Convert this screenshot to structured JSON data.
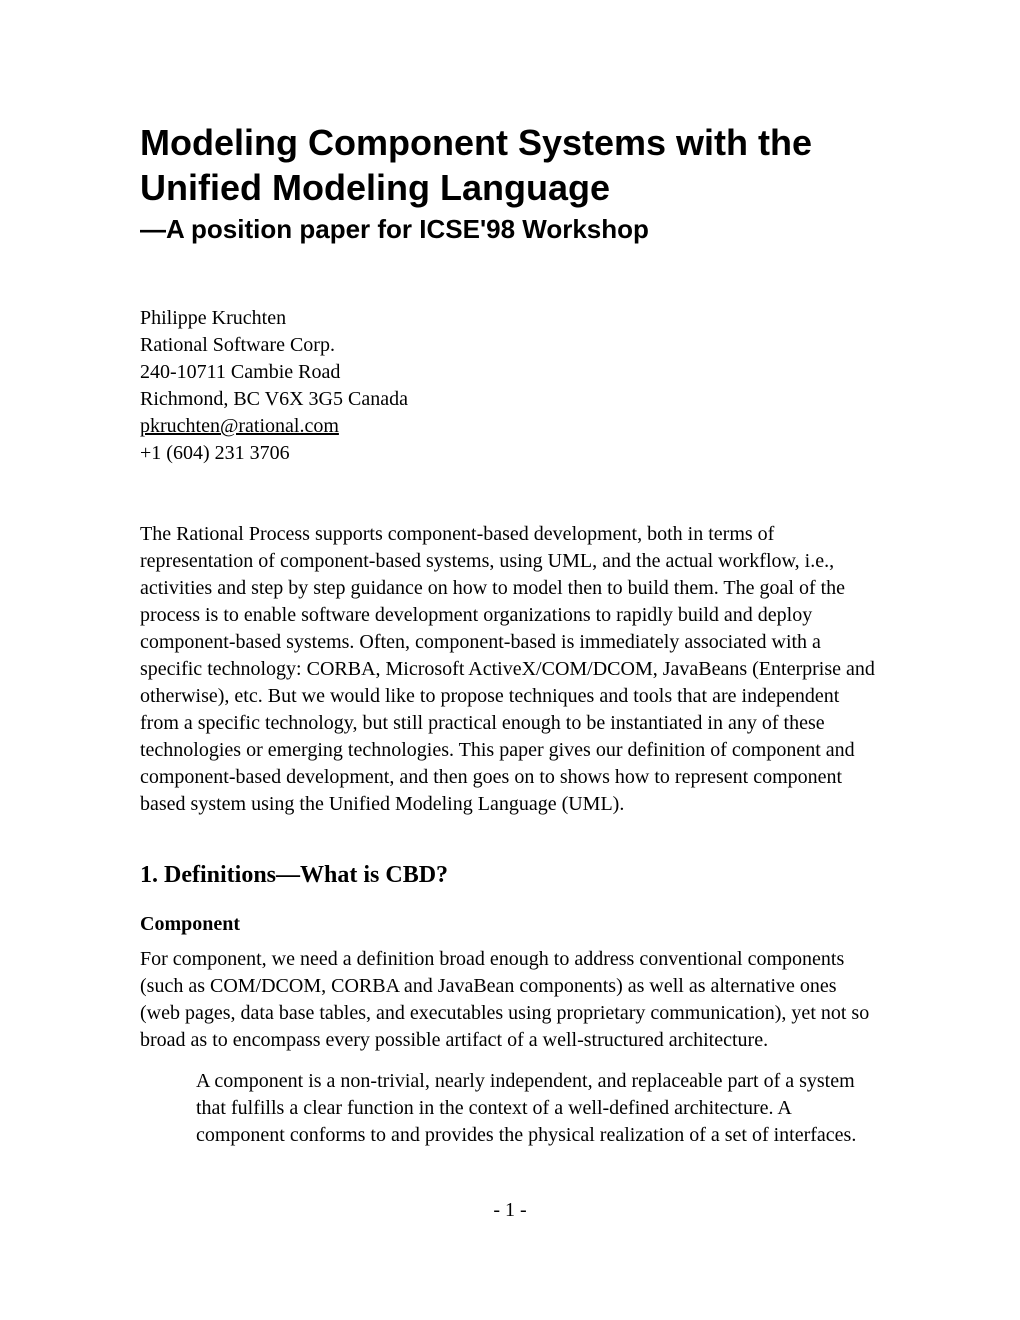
{
  "title": "Modeling Component Systems with the Unified Modeling Language",
  "subtitle": "—A position paper for ICSE'98 Workshop",
  "author": {
    "name": "Philippe Kruchten",
    "company": "Rational Software Corp.",
    "address1": "240-10711 Cambie Road",
    "address2": "Richmond, BC V6X 3G5 Canada",
    "email": "pkruchten@rational.com",
    "phone": "+1 (604) 231 3706"
  },
  "abstract": "The Rational Process supports component-based development, both in terms of representation of component-based systems, using UML, and the actual workflow, i.e., activities and step by step guidance on how to model then to build them. The goal of the process is to enable software development organizations to rapidly build and deploy component-based systems. Often, component-based is immediately associated with a specific technology: CORBA, Microsoft ActiveX/COM/DCOM, JavaBeans (Enterprise and otherwise), etc.  But we would like to propose techniques and tools that are independent from a specific technology, but still practical enough to be instantiated in any of these technologies or emerging technologies. This paper gives our definition of component and component-based development, and then goes on to shows how to represent component based system using the Unified Modeling Language (UML).",
  "section1": {
    "heading": "1. Definitions—What is CBD?",
    "sub1": {
      "heading": "Component",
      "body": "For component, we need a definition broad enough to address conventional components (such as COM/DCOM, CORBA and JavaBean components) as well as alternative ones (web pages, data base tables, and executables using proprietary communication), yet not so broad as to encompass every possible artifact of a well-structured architecture.",
      "definition": "A component is a non-trivial, nearly independent, and replaceable part of a system that fulfills a clear function in the context of a well-defined architecture. A component conforms to and provides the physical realization of a set of interfaces."
    }
  },
  "page_number": "- 1 -"
}
